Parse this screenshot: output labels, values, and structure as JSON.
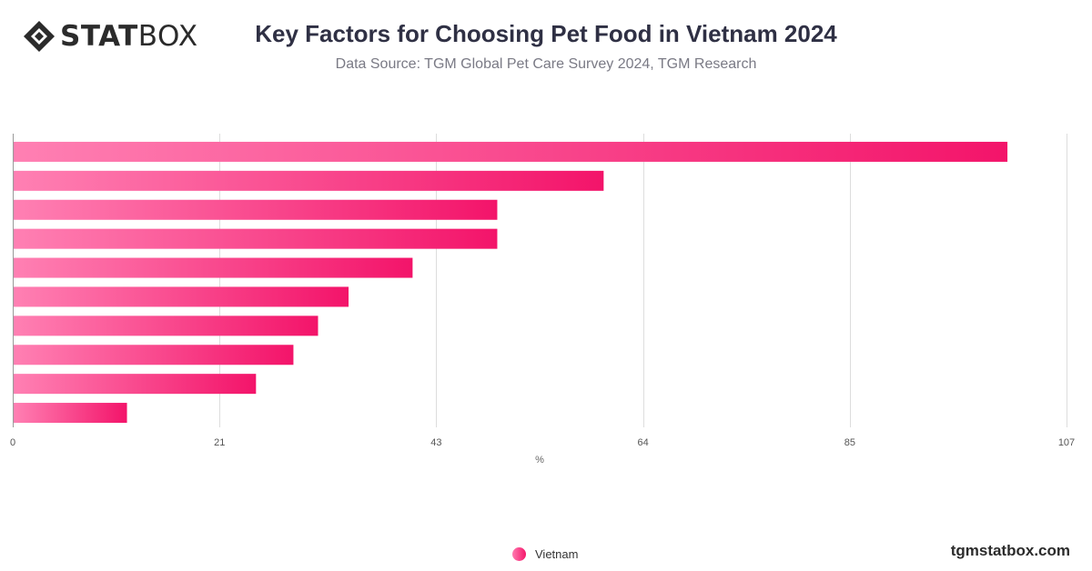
{
  "brand": {
    "logo_strong": "STAT",
    "logo_light": "BOX",
    "watermark": "tgmstatbox.com"
  },
  "header": {
    "title": "Key Factors for Choosing Pet Food in Vietnam 2024",
    "subtitle": "Data Source: TGM Global Pet Care Survey 2024, TGM Research"
  },
  "colors": {
    "bar_start": "#ff80b3",
    "bar_end": "#f3146a",
    "grid": "#dddddd",
    "text": "#2f3044"
  },
  "chart_data": {
    "type": "bar",
    "orientation": "horizontal",
    "categories": [
      "",
      "",
      "",
      "",
      "",
      "",
      "",
      "",
      "",
      ""
    ],
    "series": [
      {
        "name": "Vietnam",
        "values": [
          101,
          60,
          49.2,
          49.2,
          40.6,
          34.1,
          31,
          28.5,
          24.7,
          11.6
        ]
      }
    ],
    "x_ticks": [
      0,
      21,
      43,
      64,
      85,
      107
    ],
    "xlabel": "%",
    "xlim": [
      0,
      107
    ],
    "grid": true,
    "legend_position": "bottom-center"
  }
}
